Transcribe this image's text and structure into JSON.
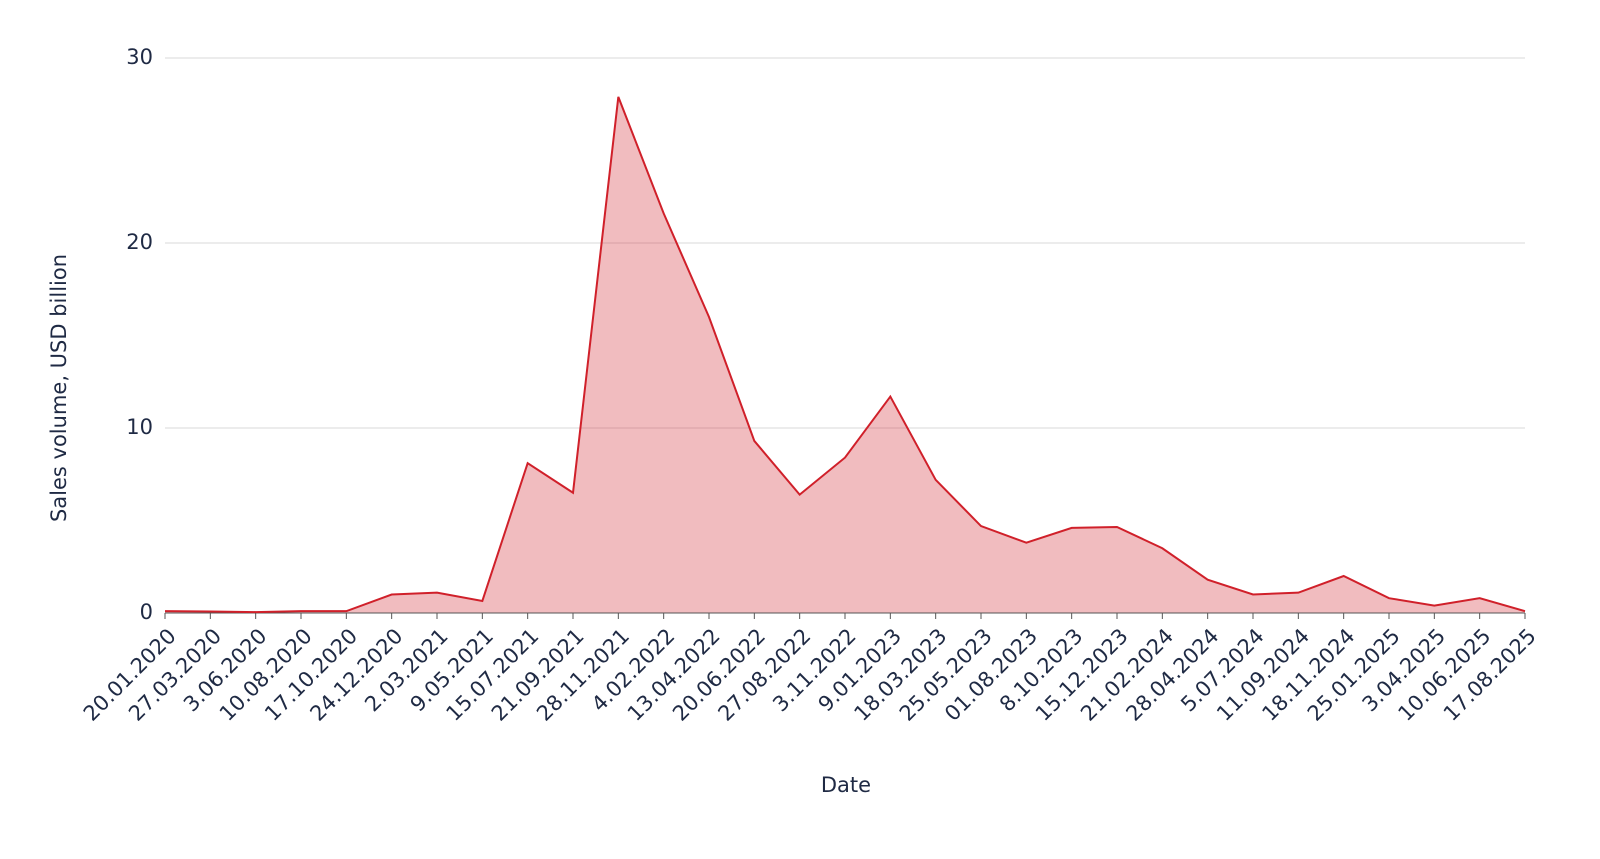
{
  "chart_data": {
    "type": "area",
    "x_label": "Date",
    "y_label": "Sales volume, USD billion",
    "categories": [
      "20.01.2020",
      "27.03.2020",
      "3.06.2020",
      "10.08.2020",
      "17.10.2020",
      "24.12.2020",
      "2.03.2021",
      "9.05.2021",
      "15.07.2021",
      "21.09.2021",
      "28.11.2021",
      "4.02.2022",
      "13.04.2022",
      "20.06.2022",
      "27.08.2022",
      "3.11.2022",
      "9.01.2023",
      "18.03.2023",
      "25.05.2023",
      "01.08.2023",
      "8.10.2023",
      "15.12.2023",
      "21.02.2024",
      "28.04.2024",
      "5.07.2024",
      "11.09.2024",
      "18.11.2024",
      "25.01.2025",
      "3.04.2025",
      "10.06.2025",
      "17.08.2025"
    ],
    "values": [
      0.1,
      0.08,
      0.05,
      0.1,
      0.1,
      1.0,
      1.1,
      0.65,
      8.1,
      6.5,
      27.9,
      21.6,
      16.0,
      9.3,
      6.4,
      8.4,
      11.7,
      7.2,
      4.7,
      3.8,
      4.6,
      4.65,
      3.5,
      1.8,
      1.0,
      1.1,
      2.0,
      0.8,
      0.4,
      0.8,
      0.1
    ],
    "color": "#d0202a",
    "ylim": [
      0,
      30
    ],
    "yticks": [
      0,
      10,
      20,
      30
    ],
    "grid": true
  }
}
